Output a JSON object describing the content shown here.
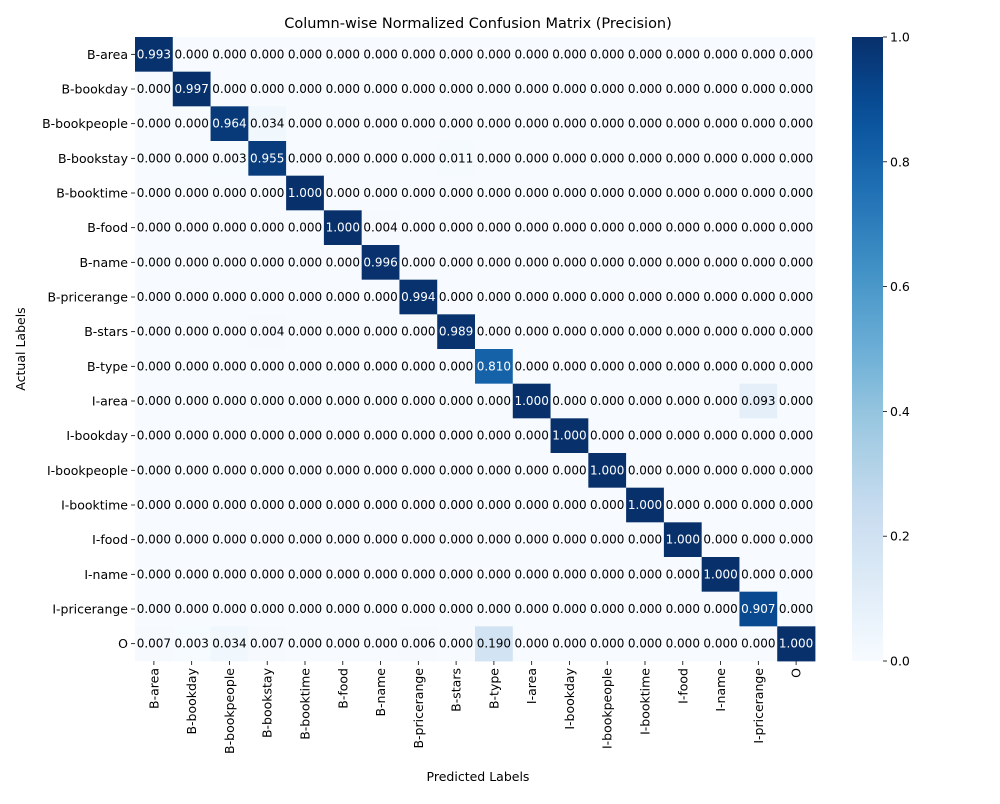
{
  "chart_data": {
    "type": "heatmap",
    "title": "Column-wise Normalized Confusion Matrix (Precision)",
    "xlabel": "Predicted Labels",
    "ylabel": "Actual Labels",
    "labels": [
      "B-area",
      "B-bookday",
      "B-bookpeople",
      "B-bookstay",
      "B-booktime",
      "B-food",
      "B-name",
      "B-pricerange",
      "B-stars",
      "B-type",
      "I-area",
      "I-bookday",
      "I-bookpeople",
      "I-booktime",
      "I-food",
      "I-name",
      "I-pricerange",
      "O"
    ],
    "values": [
      [
        0.993,
        0,
        0,
        0,
        0,
        0,
        0,
        0,
        0,
        0,
        0,
        0,
        0,
        0,
        0,
        0,
        0,
        0
      ],
      [
        0,
        0.997,
        0,
        0,
        0,
        0,
        0,
        0,
        0,
        0,
        0,
        0,
        0,
        0,
        0,
        0,
        0,
        0
      ],
      [
        0,
        0,
        0.964,
        0.034,
        0,
        0,
        0,
        0,
        0,
        0,
        0,
        0,
        0,
        0,
        0,
        0,
        0,
        0
      ],
      [
        0,
        0,
        0.003,
        0.955,
        0,
        0,
        0,
        0,
        0.011,
        0,
        0,
        0,
        0,
        0,
        0,
        0,
        0,
        0
      ],
      [
        0,
        0,
        0,
        0,
        1.0,
        0,
        0,
        0,
        0,
        0,
        0,
        0,
        0,
        0,
        0,
        0,
        0,
        0
      ],
      [
        0,
        0,
        0,
        0,
        0,
        1.0,
        0.004,
        0,
        0,
        0,
        0,
        0,
        0,
        0,
        0,
        0,
        0,
        0
      ],
      [
        0,
        0,
        0,
        0,
        0,
        0,
        0.996,
        0,
        0,
        0,
        0,
        0,
        0,
        0,
        0,
        0,
        0,
        0
      ],
      [
        0,
        0,
        0,
        0,
        0,
        0,
        0,
        0.994,
        0,
        0,
        0,
        0,
        0,
        0,
        0,
        0,
        0,
        0
      ],
      [
        0,
        0,
        0,
        0.004,
        0,
        0,
        0,
        0,
        0.989,
        0,
        0,
        0,
        0,
        0,
        0,
        0,
        0,
        0
      ],
      [
        0,
        0,
        0,
        0,
        0,
        0,
        0,
        0,
        0,
        0.81,
        0,
        0,
        0,
        0,
        0,
        0,
        0,
        0
      ],
      [
        0,
        0,
        0,
        0,
        0,
        0,
        0,
        0,
        0,
        0,
        1.0,
        0,
        0,
        0,
        0,
        0,
        0.093,
        0
      ],
      [
        0,
        0,
        0,
        0,
        0,
        0,
        0,
        0,
        0,
        0,
        0,
        1.0,
        0,
        0,
        0,
        0,
        0,
        0
      ],
      [
        0,
        0,
        0,
        0,
        0,
        0,
        0,
        0,
        0,
        0,
        0,
        0,
        1.0,
        0,
        0,
        0,
        0,
        0
      ],
      [
        0,
        0,
        0,
        0,
        0,
        0,
        0,
        0,
        0,
        0,
        0,
        0,
        0,
        1.0,
        0,
        0,
        0,
        0
      ],
      [
        0,
        0,
        0,
        0,
        0,
        0,
        0,
        0,
        0,
        0,
        0,
        0,
        0,
        0,
        1.0,
        0,
        0,
        0
      ],
      [
        0,
        0,
        0,
        0,
        0,
        0,
        0,
        0,
        0,
        0,
        0,
        0,
        0,
        0,
        0,
        1.0,
        0,
        0
      ],
      [
        0,
        0,
        0,
        0,
        0,
        0,
        0,
        0,
        0,
        0,
        0,
        0,
        0,
        0,
        0,
        0,
        0.907,
        0
      ],
      [
        0.007,
        0.003,
        0.034,
        0.007,
        0,
        0,
        0,
        0.006,
        0,
        0.19,
        0,
        0,
        0,
        0,
        0,
        0,
        0,
        1.0
      ]
    ],
    "colorbar": {
      "range": [
        0,
        1
      ],
      "ticks": [
        0.0,
        0.2,
        0.4,
        0.6,
        0.8,
        1.0
      ],
      "colormap": "Blues"
    },
    "grid": false
  }
}
